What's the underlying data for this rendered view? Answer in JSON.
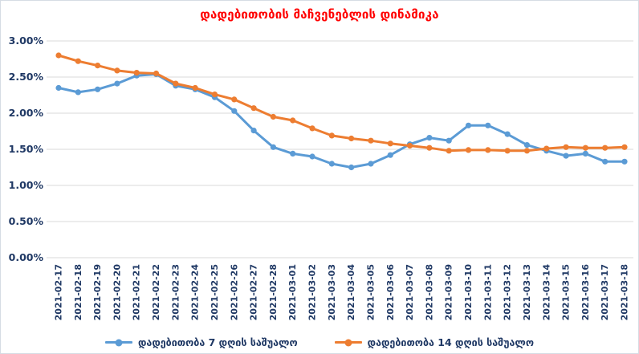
{
  "chart_data": {
    "type": "line",
    "title": "დადებითობის მაჩვენებლის დინამიკა",
    "title_color": "#FF0000",
    "x": [
      "2021-02-17",
      "2021-02-18",
      "2021-02-19",
      "2021-02-20",
      "2021-02-21",
      "2021-02-22",
      "2021-02-23",
      "2021-02-24",
      "2021-02-25",
      "2021-02-26",
      "2021-02-27",
      "2021-02-28",
      "2021-03-01",
      "2021-03-02",
      "2021-03-03",
      "2021-03-04",
      "2021-03-05",
      "2021-03-06",
      "2021-03-07",
      "2021-03-08",
      "2021-03-09",
      "2021-03-10",
      "2021-03-11",
      "2021-03-12",
      "2021-03-13",
      "2021-03-14",
      "2021-03-15",
      "2021-03-16",
      "2021-03-17",
      "2021-03-18"
    ],
    "series": [
      {
        "name": "დადებითობა 7 დღის საშუალო",
        "color": "#5B9BD5",
        "values": [
          2.35,
          2.29,
          2.33,
          2.41,
          2.52,
          2.54,
          2.38,
          2.33,
          2.22,
          2.03,
          1.76,
          1.53,
          1.44,
          1.4,
          1.3,
          1.25,
          1.3,
          1.42,
          1.57,
          1.66,
          1.62,
          1.83,
          1.83,
          1.71,
          1.56,
          1.48,
          1.41,
          1.44,
          1.33,
          1.33
        ]
      },
      {
        "name": "დადებითობა 14 დღის საშუალო",
        "color": "#ED7D31",
        "values": [
          2.8,
          2.72,
          2.66,
          2.59,
          2.56,
          2.55,
          2.41,
          2.35,
          2.26,
          2.19,
          2.07,
          1.95,
          1.9,
          1.79,
          1.69,
          1.65,
          1.62,
          1.58,
          1.55,
          1.52,
          1.48,
          1.49,
          1.49,
          1.48,
          1.48,
          1.51,
          1.53,
          1.52,
          1.52,
          1.53
        ]
      }
    ],
    "ylim": [
      0,
      3.0
    ],
    "y_tick_step": 0.5,
    "y_tick_labels": [
      "0.00%",
      "0.50%",
      "1.00%",
      "1.50%",
      "2.00%",
      "2.50%",
      "3.00%"
    ],
    "grid": "horizontal",
    "legend_position": "bottom",
    "axis_label_color": "#1F3864",
    "gridline_color": "#D9D9D9"
  }
}
